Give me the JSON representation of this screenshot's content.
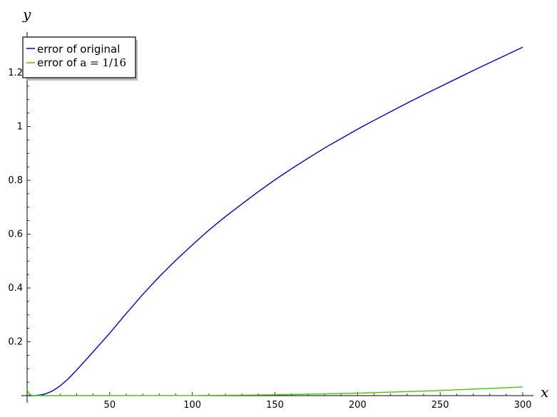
{
  "chart_data": {
    "type": "line",
    "xlabel": "x",
    "ylabel": "y",
    "xlim": [
      0,
      300
    ],
    "ylim": [
      0,
      1.32
    ],
    "x_ticks": [
      50,
      100,
      150,
      200,
      250,
      300
    ],
    "y_ticks": [
      0.2,
      0.4,
      0.6,
      0.8,
      1,
      1.2
    ],
    "x_tick_labels": [
      "50",
      "100",
      "150",
      "200",
      "250",
      "300"
    ],
    "y_tick_labels": [
      "0.2",
      "0.4",
      "0.6",
      "0.8",
      "1",
      "1.2"
    ],
    "grid": false,
    "legend_position": "top-left",
    "series": [
      {
        "name": "error of original",
        "color": "#0000cc",
        "x": [
          1,
          5,
          10,
          15,
          20,
          25,
          30,
          40,
          50,
          60,
          70,
          80,
          90,
          100,
          110,
          120,
          130,
          140,
          150,
          160,
          170,
          180,
          190,
          200,
          210,
          220,
          230,
          240,
          250,
          260,
          270,
          280,
          290,
          300
        ],
        "y": [
          0.0,
          0.0,
          0.004,
          0.016,
          0.036,
          0.063,
          0.095,
          0.163,
          0.232,
          0.305,
          0.376,
          0.442,
          0.503,
          0.56,
          0.615,
          0.665,
          0.712,
          0.758,
          0.802,
          0.843,
          0.882,
          0.92,
          0.955,
          0.99,
          1.023,
          1.055,
          1.087,
          1.118,
          1.148,
          1.178,
          1.208,
          1.237,
          1.266,
          1.295
        ]
      },
      {
        "name": "error of a = 1/16",
        "legend_prefix": "error of ",
        "legend_math_var": "a",
        "legend_math_eq": " = 1/16",
        "color": "#44cc00",
        "x": [
          0,
          1,
          3,
          5,
          10,
          50,
          100,
          150,
          200,
          250,
          300
        ],
        "y": [
          0.022,
          0.008,
          0.0,
          0.0,
          0.0,
          0.0,
          0.0005,
          0.003,
          0.009,
          0.019,
          0.032
        ]
      }
    ]
  }
}
